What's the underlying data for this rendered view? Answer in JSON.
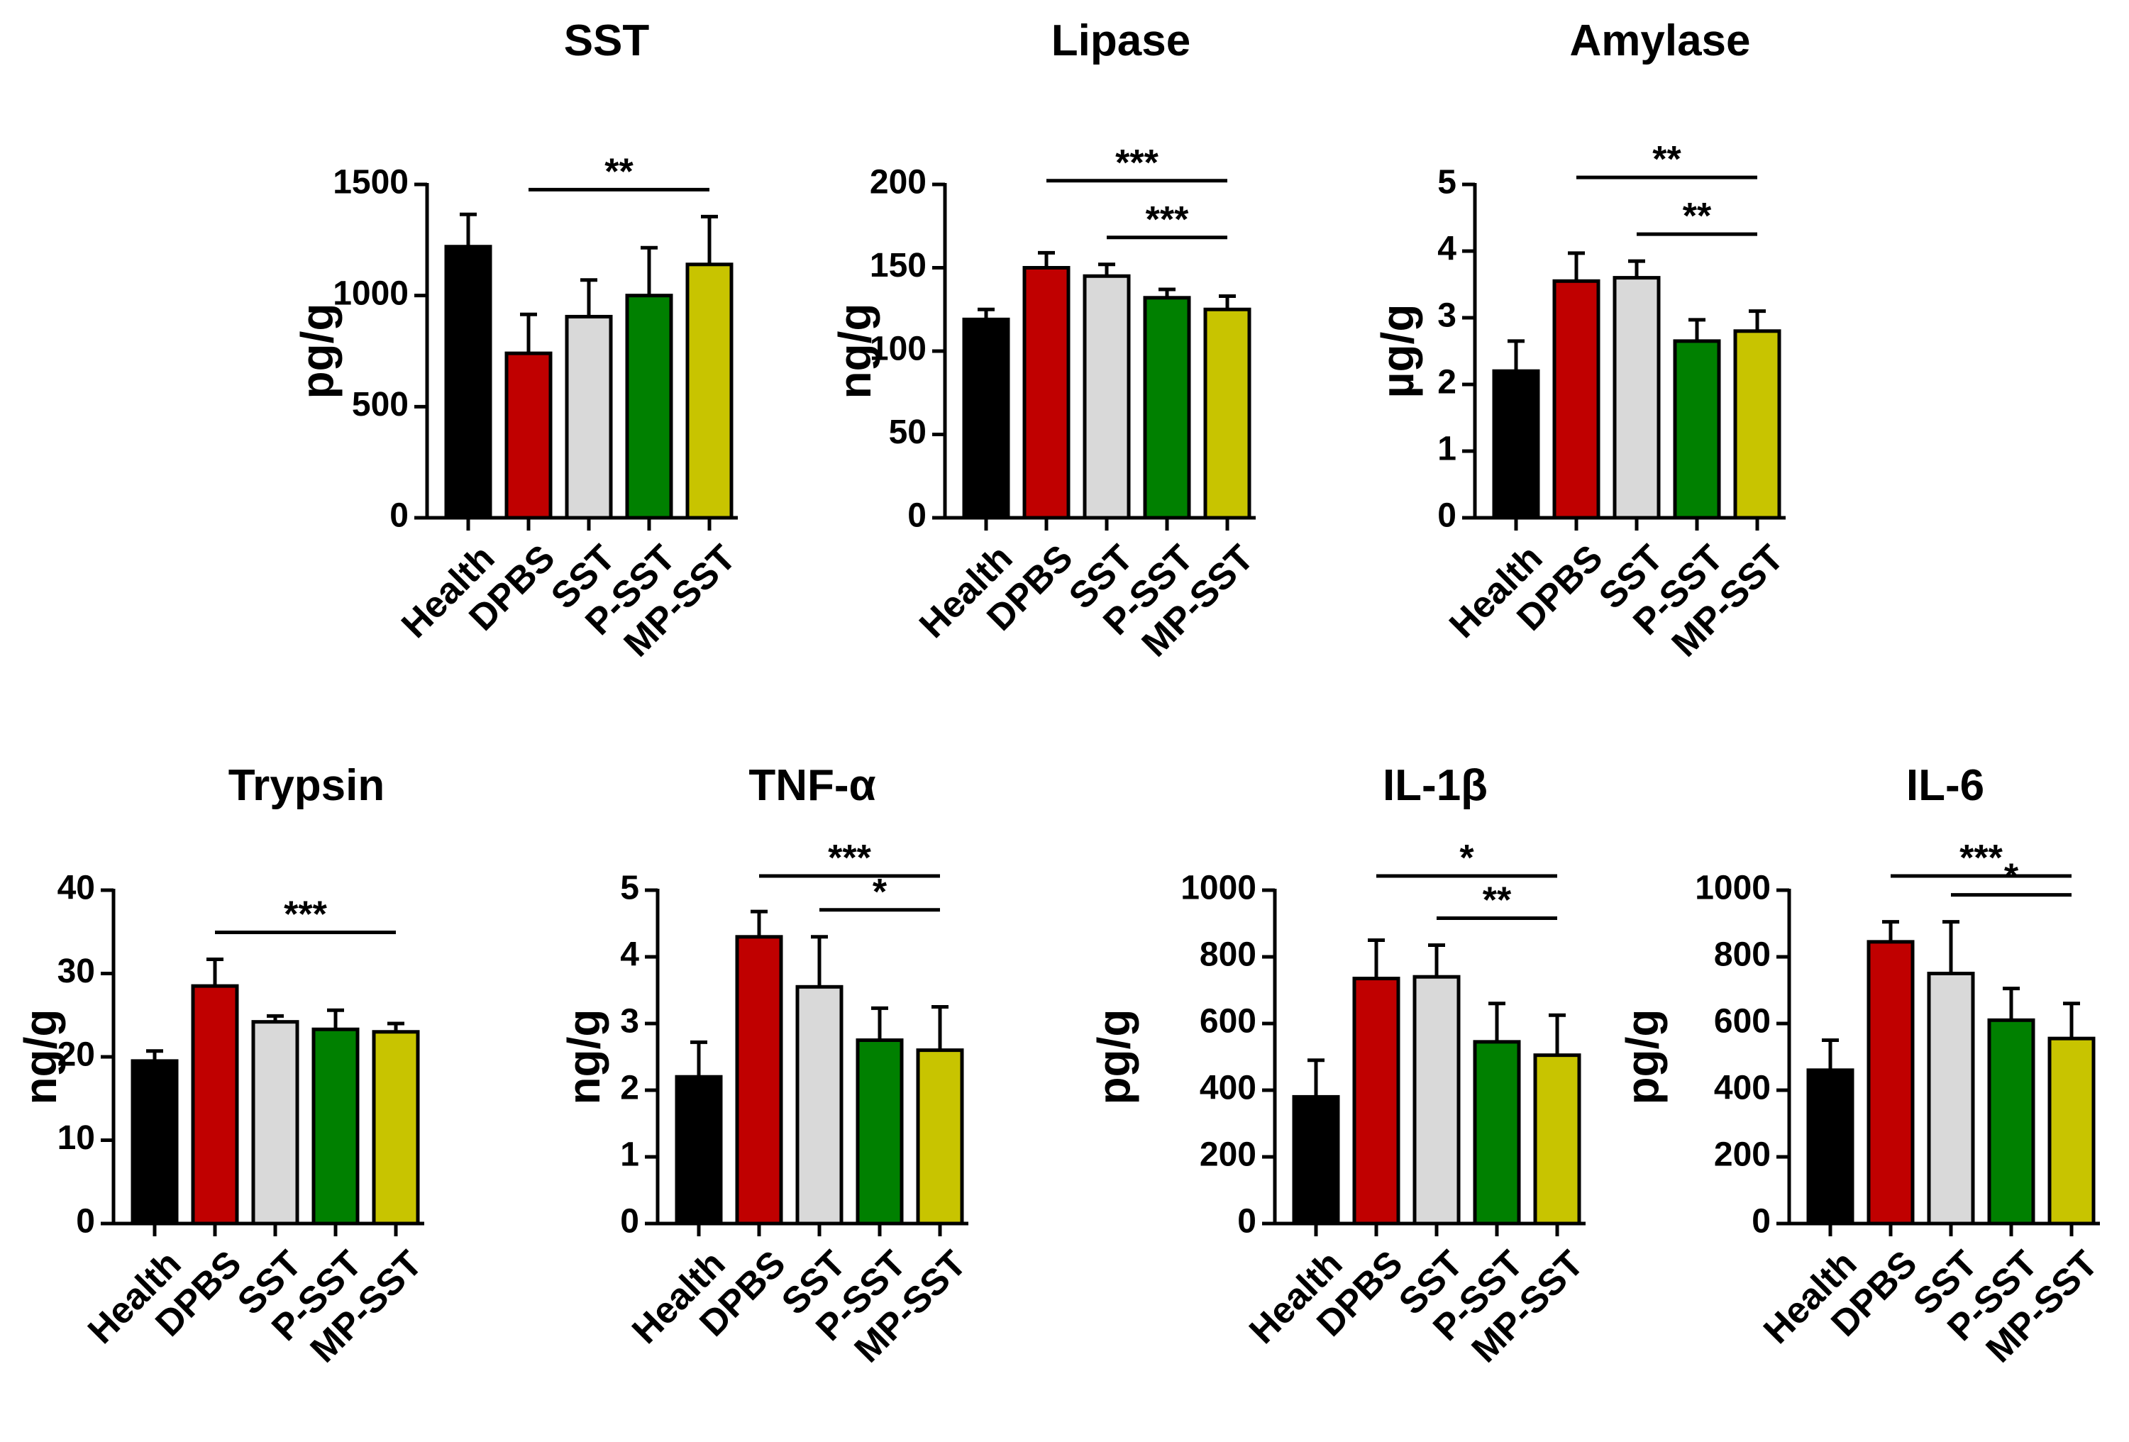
{
  "figure": {
    "groups": [
      "Health",
      "DPBS",
      "SST",
      "P-SST",
      "MP-SST"
    ],
    "colors": {
      "Health": "#000000",
      "DPBS": "#c00000",
      "SST": "#d9d9d9",
      "P-SST": "#008000",
      "MP-SST": "#c8c400"
    }
  },
  "chart_data": [
    {
      "type": "bar",
      "title": "SST",
      "ylabel": "pg/g",
      "ylim": [
        0,
        1500
      ],
      "yticks": [
        0,
        500,
        1000,
        1500
      ],
      "categories": [
        "Health",
        "DPBS",
        "SST",
        "P-SST",
        "MP-SST"
      ],
      "values": [
        1220,
        740,
        905,
        1000,
        1140
      ],
      "errors": [
        145,
        175,
        165,
        215,
        215
      ],
      "significance": [
        {
          "from": "DPBS",
          "to": "MP-SST",
          "label": "**"
        }
      ]
    },
    {
      "type": "bar",
      "title": "Lipase",
      "ylabel": "ng/g",
      "ylim": [
        0,
        200
      ],
      "yticks": [
        0,
        50,
        100,
        150,
        200
      ],
      "categories": [
        "Health",
        "DPBS",
        "SST",
        "P-SST",
        "MP-SST"
      ],
      "values": [
        119,
        150,
        145,
        132,
        125
      ],
      "errors": [
        6,
        9,
        7,
        5,
        8
      ],
      "significance": [
        {
          "from": "DPBS",
          "to": "MP-SST",
          "label": "***"
        },
        {
          "from": "SST",
          "to": "MP-SST",
          "label": "***"
        }
      ]
    },
    {
      "type": "bar",
      "title": "Amylase",
      "ylabel": "µg/g",
      "ylim": [
        0,
        5
      ],
      "yticks": [
        0,
        1,
        2,
        3,
        4,
        5
      ],
      "categories": [
        "Health",
        "DPBS",
        "SST",
        "P-SST",
        "MP-SST"
      ],
      "values": [
        2.2,
        3.55,
        3.6,
        2.65,
        2.8
      ],
      "errors": [
        0.45,
        0.42,
        0.25,
        0.32,
        0.3
      ],
      "significance": [
        {
          "from": "DPBS",
          "to": "MP-SST",
          "label": "**"
        },
        {
          "from": "SST",
          "to": "MP-SST",
          "label": "**"
        }
      ]
    },
    {
      "type": "bar",
      "title": "Trypsin",
      "ylabel": "ng/g",
      "ylim": [
        0,
        40
      ],
      "yticks": [
        0,
        10,
        20,
        30,
        40
      ],
      "categories": [
        "Health",
        "DPBS",
        "SST",
        "P-SST",
        "MP-SST"
      ],
      "values": [
        19.5,
        28.5,
        24.2,
        23.3,
        23
      ],
      "errors": [
        1.2,
        3.2,
        0.7,
        2.3,
        1.0
      ],
      "significance": [
        {
          "from": "DPBS",
          "to": "MP-SST",
          "label": "***"
        }
      ]
    },
    {
      "type": "bar",
      "title": "TNF-α",
      "ylabel": "ng/g",
      "ylim": [
        0,
        5
      ],
      "yticks": [
        0,
        1,
        2,
        3,
        4,
        5
      ],
      "categories": [
        "Health",
        "DPBS",
        "SST",
        "P-SST",
        "MP-SST"
      ],
      "values": [
        2.2,
        4.3,
        3.55,
        2.75,
        2.6
      ],
      "errors": [
        0.52,
        0.38,
        0.75,
        0.48,
        0.65
      ],
      "significance": [
        {
          "from": "DPBS",
          "to": "MP-SST",
          "label": "***"
        },
        {
          "from": "SST",
          "to": "MP-SST",
          "label": "*"
        }
      ]
    },
    {
      "type": "bar",
      "title": "IL-1β",
      "ylabel": "pg/g",
      "ylim": [
        0,
        1000
      ],
      "yticks": [
        0,
        200,
        400,
        600,
        800,
        1000
      ],
      "categories": [
        "Health",
        "DPBS",
        "SST",
        "P-SST",
        "MP-SST"
      ],
      "values": [
        380,
        735,
        740,
        545,
        505
      ],
      "errors": [
        110,
        115,
        95,
        115,
        120
      ],
      "significance": [
        {
          "from": "DPBS",
          "to": "MP-SST",
          "label": "*"
        },
        {
          "from": "SST",
          "to": "MP-SST",
          "label": "**"
        }
      ]
    },
    {
      "type": "bar",
      "title": "IL-6",
      "ylabel": "pg/g",
      "ylim": [
        0,
        1000
      ],
      "yticks": [
        0,
        200,
        400,
        600,
        800,
        1000
      ],
      "categories": [
        "Health",
        "DPBS",
        "SST",
        "P-SST",
        "MP-SST"
      ],
      "values": [
        460,
        845,
        750,
        610,
        555
      ],
      "errors": [
        90,
        60,
        155,
        95,
        105
      ],
      "significance": [
        {
          "from": "DPBS",
          "to": "MP-SST",
          "label": "***"
        },
        {
          "from": "SST",
          "to": "MP-SST",
          "label": "*"
        }
      ]
    }
  ]
}
